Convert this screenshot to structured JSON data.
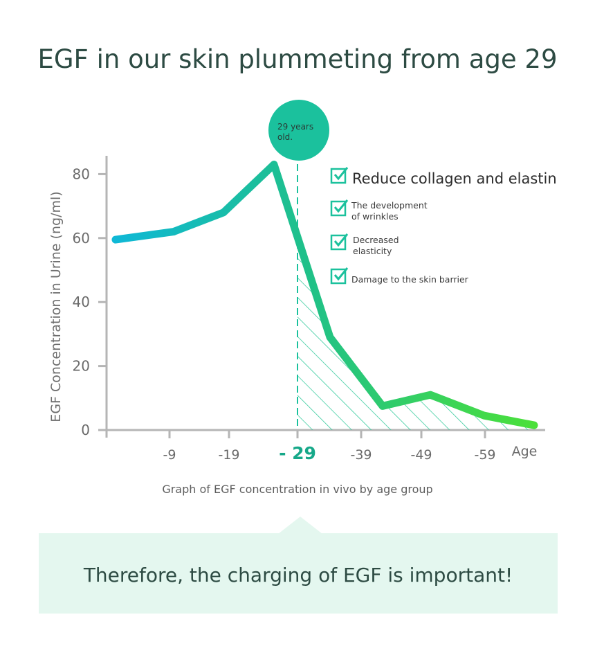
{
  "title": "EGF in our skin plummeting from age 29",
  "caption": "Graph of EGF concentration in vivo by age group",
  "banner_text": "Therefore, the charging of EGF is important!",
  "marker": {
    "age": "29",
    "label_lines": [
      "29 years",
      "old."
    ]
  },
  "checklist": [
    {
      "lines": [
        "Reduce collagen and elastin"
      ],
      "size": "large"
    },
    {
      "lines": [
        "The development",
        "of wrinkles"
      ],
      "size": "small"
    },
    {
      "lines": [
        "Decreased",
        "elasticity"
      ],
      "size": "small"
    },
    {
      "lines": [
        "Damage to the skin barrier"
      ],
      "size": "small"
    }
  ],
  "colors": {
    "title": "#2d4b43",
    "line_start": "#0fb8d6",
    "line_mid": "#1fc08a",
    "line_end": "#4be03a",
    "accent": "#1bc19d",
    "banner_bg": "#e4f7ef",
    "hatch": "#2fc99a"
  },
  "chart_data": {
    "type": "line",
    "title": "EGF in our skin plummeting from age 29",
    "ylabel": "EGF Concentration in Urine (ng/ml)",
    "xlabel": "Age",
    "ylim": [
      0,
      85
    ],
    "yticks": [
      0,
      20,
      40,
      60,
      80
    ],
    "xticks": [
      "-9",
      "-19",
      "- 29",
      "-39",
      "-49",
      "-59"
    ],
    "x": [
      1,
      9,
      18,
      25,
      34,
      44,
      52,
      60,
      67
    ],
    "y": [
      59.5,
      62,
      68,
      83,
      29,
      7.5,
      11,
      4.5,
      1.5
    ],
    "highlight_tick": "- 29",
    "grid": false,
    "shaded_region": "under the line from age 29 onward"
  }
}
